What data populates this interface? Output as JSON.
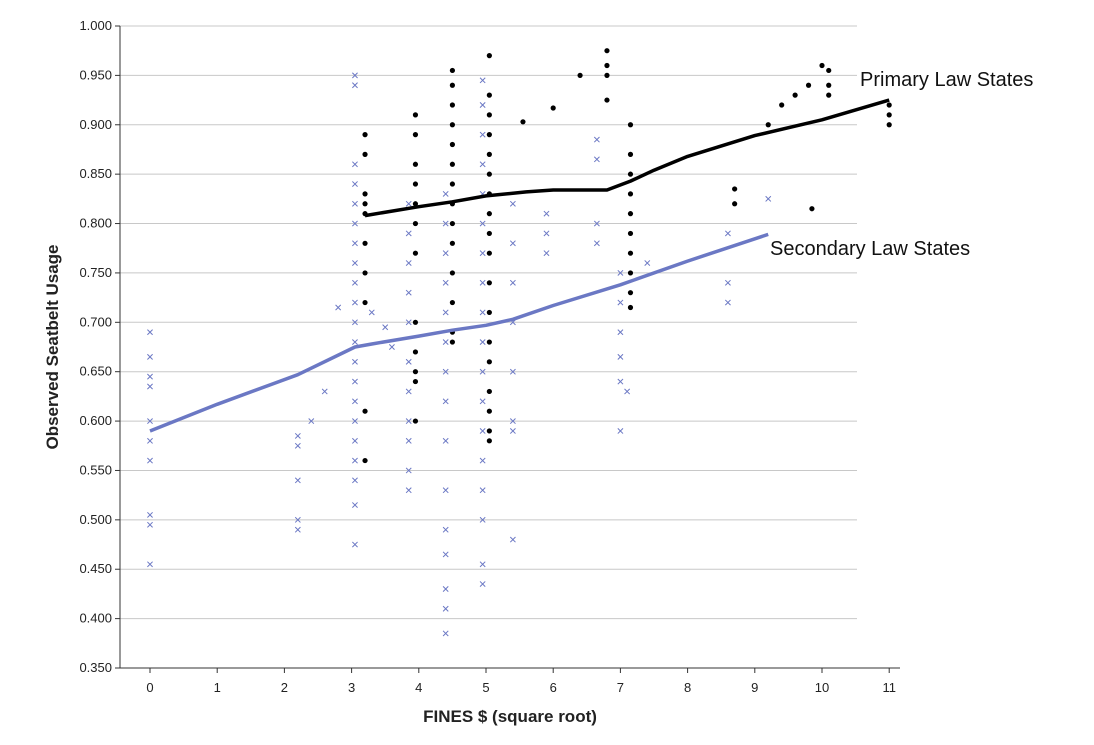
{
  "chart_data": {
    "type": "scatter",
    "xlabel": "FINES $ (square root)",
    "ylabel": "Observed Seatbelt Usage",
    "xlim": [
      -0.5,
      11.4
    ],
    "ylim": [
      0.35,
      1.0
    ],
    "x_ticks": [
      "0",
      "1",
      "2",
      "3",
      "4",
      "5",
      "6",
      "7",
      "8",
      "9",
      "10",
      "11"
    ],
    "y_ticks": [
      "0.350",
      "0.400",
      "0.450",
      "0.500",
      "0.550",
      "0.600",
      "0.650",
      "0.700",
      "0.750",
      "0.800",
      "0.850",
      "0.900",
      "0.950",
      "1.000"
    ],
    "grid": "horizontal",
    "colors": {
      "primary": "#000000",
      "secondary": "#6b78c4"
    },
    "series": [
      {
        "name": "Primary Law States",
        "marker": "dot",
        "points": [
          [
            3.2,
            0.81
          ],
          [
            3.2,
            0.82
          ],
          [
            3.2,
            0.83
          ],
          [
            3.2,
            0.87
          ],
          [
            3.2,
            0.89
          ],
          [
            3.2,
            0.78
          ],
          [
            3.2,
            0.75
          ],
          [
            3.2,
            0.72
          ],
          [
            3.2,
            0.61
          ],
          [
            3.2,
            0.56
          ],
          [
            3.95,
            0.91
          ],
          [
            3.95,
            0.89
          ],
          [
            3.95,
            0.86
          ],
          [
            3.95,
            0.84
          ],
          [
            3.95,
            0.82
          ],
          [
            3.95,
            0.8
          ],
          [
            3.95,
            0.77
          ],
          [
            3.95,
            0.7
          ],
          [
            3.95,
            0.67
          ],
          [
            3.95,
            0.65
          ],
          [
            3.95,
            0.64
          ],
          [
            3.95,
            0.6
          ],
          [
            4.5,
            0.955
          ],
          [
            4.5,
            0.94
          ],
          [
            4.5,
            0.92
          ],
          [
            4.5,
            0.9
          ],
          [
            4.5,
            0.88
          ],
          [
            4.5,
            0.86
          ],
          [
            4.5,
            0.84
          ],
          [
            4.5,
            0.82
          ],
          [
            4.5,
            0.8
          ],
          [
            4.5,
            0.78
          ],
          [
            4.5,
            0.75
          ],
          [
            4.5,
            0.72
          ],
          [
            4.5,
            0.69
          ],
          [
            4.5,
            0.68
          ],
          [
            5.05,
            0.97
          ],
          [
            5.05,
            0.93
          ],
          [
            5.05,
            0.91
          ],
          [
            5.05,
            0.89
          ],
          [
            5.05,
            0.87
          ],
          [
            5.05,
            0.85
          ],
          [
            5.05,
            0.83
          ],
          [
            5.05,
            0.81
          ],
          [
            5.05,
            0.79
          ],
          [
            5.05,
            0.77
          ],
          [
            5.05,
            0.74
          ],
          [
            5.05,
            0.71
          ],
          [
            5.05,
            0.68
          ],
          [
            5.05,
            0.66
          ],
          [
            5.05,
            0.63
          ],
          [
            5.05,
            0.61
          ],
          [
            5.05,
            0.59
          ],
          [
            5.05,
            0.58
          ],
          [
            5.55,
            0.903
          ],
          [
            6.0,
            0.917
          ],
          [
            6.4,
            0.95
          ],
          [
            6.8,
            0.975
          ],
          [
            6.8,
            0.96
          ],
          [
            6.8,
            0.95
          ],
          [
            6.8,
            0.925
          ],
          [
            7.15,
            0.9
          ],
          [
            7.15,
            0.87
          ],
          [
            7.15,
            0.85
          ],
          [
            7.15,
            0.83
          ],
          [
            7.15,
            0.81
          ],
          [
            7.15,
            0.79
          ],
          [
            7.15,
            0.77
          ],
          [
            7.15,
            0.75
          ],
          [
            7.15,
            0.73
          ],
          [
            7.15,
            0.715
          ],
          [
            8.7,
            0.835
          ],
          [
            8.7,
            0.82
          ],
          [
            9.2,
            0.9
          ],
          [
            9.4,
            0.92
          ],
          [
            9.6,
            0.93
          ],
          [
            9.8,
            0.94
          ],
          [
            9.85,
            0.815
          ],
          [
            10.0,
            0.96
          ],
          [
            10.1,
            0.955
          ],
          [
            10.1,
            0.94
          ],
          [
            10.1,
            0.93
          ],
          [
            11.0,
            0.92
          ],
          [
            11.0,
            0.91
          ],
          [
            11.0,
            0.9
          ]
        ],
        "curve": [
          [
            3.2,
            0.808
          ],
          [
            4.0,
            0.817
          ],
          [
            4.5,
            0.822
          ],
          [
            5.0,
            0.828
          ],
          [
            5.6,
            0.832
          ],
          [
            6.0,
            0.834
          ],
          [
            6.8,
            0.834
          ],
          [
            7.15,
            0.843
          ],
          [
            7.5,
            0.854
          ],
          [
            8.0,
            0.868
          ],
          [
            9.0,
            0.889
          ],
          [
            10.0,
            0.905
          ],
          [
            11.0,
            0.925
          ]
        ]
      },
      {
        "name": "Secondary Law States",
        "marker": "x",
        "points": [
          [
            0,
            0.69
          ],
          [
            0,
            0.665
          ],
          [
            0,
            0.645
          ],
          [
            0,
            0.635
          ],
          [
            0,
            0.6
          ],
          [
            0,
            0.58
          ],
          [
            0,
            0.56
          ],
          [
            0,
            0.505
          ],
          [
            0,
            0.495
          ],
          [
            0,
            0.455
          ],
          [
            2.2,
            0.585
          ],
          [
            2.2,
            0.575
          ],
          [
            2.2,
            0.54
          ],
          [
            2.2,
            0.5
          ],
          [
            2.2,
            0.49
          ],
          [
            2.4,
            0.6
          ],
          [
            2.6,
            0.63
          ],
          [
            2.8,
            0.715
          ],
          [
            3.05,
            0.95
          ],
          [
            3.05,
            0.94
          ],
          [
            3.05,
            0.86
          ],
          [
            3.05,
            0.84
          ],
          [
            3.05,
            0.82
          ],
          [
            3.05,
            0.8
          ],
          [
            3.05,
            0.78
          ],
          [
            3.05,
            0.76
          ],
          [
            3.05,
            0.74
          ],
          [
            3.05,
            0.72
          ],
          [
            3.05,
            0.7
          ],
          [
            3.05,
            0.68
          ],
          [
            3.05,
            0.66
          ],
          [
            3.05,
            0.64
          ],
          [
            3.05,
            0.62
          ],
          [
            3.05,
            0.6
          ],
          [
            3.05,
            0.58
          ],
          [
            3.05,
            0.56
          ],
          [
            3.05,
            0.54
          ],
          [
            3.05,
            0.515
          ],
          [
            3.05,
            0.475
          ],
          [
            3.3,
            0.71
          ],
          [
            3.5,
            0.695
          ],
          [
            3.6,
            0.675
          ],
          [
            3.85,
            0.82
          ],
          [
            3.85,
            0.79
          ],
          [
            3.85,
            0.76
          ],
          [
            3.85,
            0.73
          ],
          [
            3.85,
            0.7
          ],
          [
            3.85,
            0.66
          ],
          [
            3.85,
            0.63
          ],
          [
            3.85,
            0.6
          ],
          [
            3.85,
            0.58
          ],
          [
            3.85,
            0.55
          ],
          [
            3.85,
            0.53
          ],
          [
            4.4,
            0.83
          ],
          [
            4.4,
            0.8
          ],
          [
            4.4,
            0.77
          ],
          [
            4.4,
            0.74
          ],
          [
            4.4,
            0.71
          ],
          [
            4.4,
            0.68
          ],
          [
            4.4,
            0.65
          ],
          [
            4.4,
            0.62
          ],
          [
            4.4,
            0.58
          ],
          [
            4.4,
            0.53
          ],
          [
            4.4,
            0.49
          ],
          [
            4.4,
            0.465
          ],
          [
            4.4,
            0.43
          ],
          [
            4.4,
            0.41
          ],
          [
            4.4,
            0.385
          ],
          [
            4.95,
            0.945
          ],
          [
            4.95,
            0.92
          ],
          [
            4.95,
            0.89
          ],
          [
            4.95,
            0.86
          ],
          [
            4.95,
            0.83
          ],
          [
            4.95,
            0.8
          ],
          [
            4.95,
            0.77
          ],
          [
            4.95,
            0.74
          ],
          [
            4.95,
            0.71
          ],
          [
            4.95,
            0.68
          ],
          [
            4.95,
            0.65
          ],
          [
            4.95,
            0.62
          ],
          [
            4.95,
            0.59
          ],
          [
            4.95,
            0.56
          ],
          [
            4.95,
            0.53
          ],
          [
            4.95,
            0.5
          ],
          [
            4.95,
            0.455
          ],
          [
            4.95,
            0.435
          ],
          [
            5.4,
            0.82
          ],
          [
            5.4,
            0.78
          ],
          [
            5.4,
            0.74
          ],
          [
            5.4,
            0.7
          ],
          [
            5.4,
            0.65
          ],
          [
            5.4,
            0.6
          ],
          [
            5.4,
            0.59
          ],
          [
            5.4,
            0.48
          ],
          [
            5.9,
            0.81
          ],
          [
            5.9,
            0.79
          ],
          [
            5.9,
            0.77
          ],
          [
            6.65,
            0.885
          ],
          [
            6.65,
            0.865
          ],
          [
            6.65,
            0.8
          ],
          [
            6.65,
            0.78
          ],
          [
            7.0,
            0.75
          ],
          [
            7.0,
            0.72
          ],
          [
            7.0,
            0.69
          ],
          [
            7.0,
            0.665
          ],
          [
            7.0,
            0.64
          ],
          [
            7.0,
            0.59
          ],
          [
            7.1,
            0.63
          ],
          [
            7.4,
            0.76
          ],
          [
            8.6,
            0.74
          ],
          [
            8.6,
            0.72
          ],
          [
            8.6,
            0.79
          ],
          [
            9.2,
            0.825
          ]
        ],
        "curve": [
          [
            0,
            0.59
          ],
          [
            1,
            0.617
          ],
          [
            2.2,
            0.647
          ],
          [
            3.05,
            0.675
          ],
          [
            3.3,
            0.678
          ],
          [
            4.0,
            0.686
          ],
          [
            4.5,
            0.692
          ],
          [
            5.0,
            0.697
          ],
          [
            5.4,
            0.703
          ],
          [
            6.0,
            0.717
          ],
          [
            7.0,
            0.738
          ],
          [
            8.0,
            0.762
          ],
          [
            9.2,
            0.789
          ]
        ]
      }
    ]
  }
}
